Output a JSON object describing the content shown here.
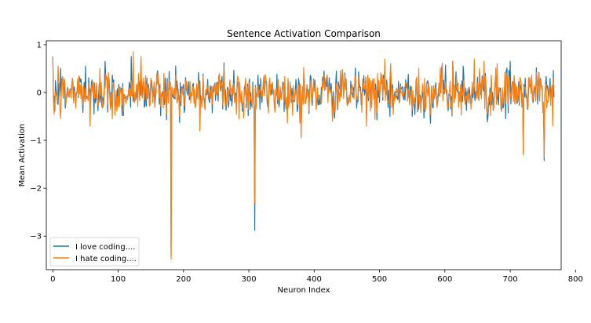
{
  "chart_data": {
    "type": "line",
    "title": "Sentence Activation Comparison",
    "xlabel": "Neuron Index",
    "ylabel": "Mean Activation",
    "xlim": [
      -10,
      778
    ],
    "ylim": [
      -3.7,
      1.08
    ],
    "x_ticks": [
      0,
      100,
      200,
      300,
      400,
      500,
      600,
      700,
      800
    ],
    "y_ticks": [
      1,
      0,
      -1,
      -2,
      -3
    ],
    "x_tick_labels": [
      "0",
      "100",
      "200",
      "300",
      "400",
      "500",
      "600",
      "700",
      "800"
    ],
    "y_tick_labels": [
      "1",
      "0",
      "−1",
      "−2",
      "−3"
    ],
    "grid": false,
    "legend_position": "lower-left",
    "n_points": 768,
    "series": [
      {
        "name": "I love coding....",
        "color": "#1f77b4",
        "notable_points": [
          {
            "x": 0,
            "y": 0.75
          },
          {
            "x": 4,
            "y": 0.25
          },
          {
            "x": 8,
            "y": -0.25
          },
          {
            "x": 12,
            "y": 0.5
          },
          {
            "x": 40,
            "y": 0.3
          },
          {
            "x": 50,
            "y": 0.55
          },
          {
            "x": 63,
            "y": -0.45
          },
          {
            "x": 80,
            "y": 0.65
          },
          {
            "x": 90,
            "y": -0.3
          },
          {
            "x": 120,
            "y": 0.75
          },
          {
            "x": 160,
            "y": 0.45
          },
          {
            "x": 172,
            "y": 0.3
          },
          {
            "x": 181,
            "y": -3.4
          },
          {
            "x": 262,
            "y": 0.62
          },
          {
            "x": 309,
            "y": -2.88
          },
          {
            "x": 380,
            "y": -0.9
          },
          {
            "x": 516,
            "y": -0.5
          },
          {
            "x": 612,
            "y": 0.65
          },
          {
            "x": 628,
            "y": 0.55
          },
          {
            "x": 660,
            "y": 0.5
          },
          {
            "x": 693,
            "y": -0.55
          },
          {
            "x": 700,
            "y": 0.65
          },
          {
            "x": 720,
            "y": -1.25
          },
          {
            "x": 752,
            "y": -1.42
          },
          {
            "x": 767,
            "y": -0.1
          }
        ]
      },
      {
        "name": "I hate coding....",
        "color": "#ff7f0e",
        "notable_points": [
          {
            "x": 0,
            "y": 0.75
          },
          {
            "x": 2,
            "y": -0.45
          },
          {
            "x": 8,
            "y": 0.55
          },
          {
            "x": 20,
            "y": -0.25
          },
          {
            "x": 40,
            "y": 0.35
          },
          {
            "x": 57,
            "y": -0.7
          },
          {
            "x": 72,
            "y": 0.5
          },
          {
            "x": 91,
            "y": -0.55
          },
          {
            "x": 123,
            "y": 0.85
          },
          {
            "x": 135,
            "y": 0.75
          },
          {
            "x": 170,
            "y": 0.4
          },
          {
            "x": 181,
            "y": -3.48
          },
          {
            "x": 225,
            "y": -0.8
          },
          {
            "x": 262,
            "y": 0.55
          },
          {
            "x": 309,
            "y": -2.3
          },
          {
            "x": 380,
            "y": -0.95
          },
          {
            "x": 440,
            "y": 0.45
          },
          {
            "x": 560,
            "y": 0.5
          },
          {
            "x": 612,
            "y": 0.65
          },
          {
            "x": 645,
            "y": 0.7
          },
          {
            "x": 660,
            "y": 0.65
          },
          {
            "x": 680,
            "y": 0.6
          },
          {
            "x": 720,
            "y": -1.3
          },
          {
            "x": 752,
            "y": -1.35
          },
          {
            "x": 767,
            "y": 0.1
          }
        ]
      }
    ]
  }
}
